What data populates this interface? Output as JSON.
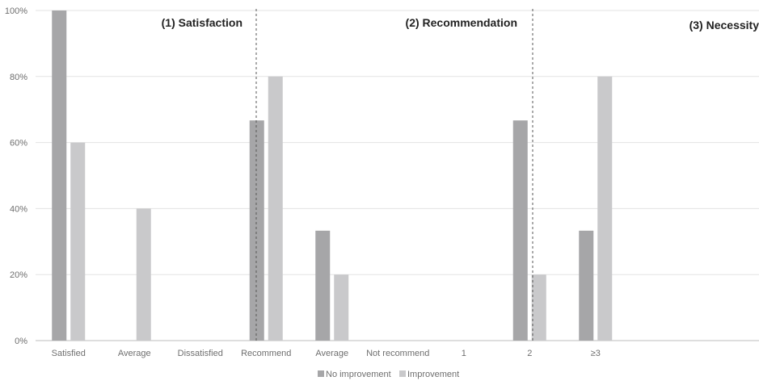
{
  "chart_data": {
    "type": "bar",
    "y_axis": {
      "ylim": [
        0,
        100
      ],
      "ticks": [
        0,
        20,
        40,
        60,
        80,
        100
      ],
      "tick_labels": [
        "0%",
        "20%",
        "40%",
        "60%",
        "80%",
        "100%"
      ]
    },
    "grid": true,
    "legend_position": "bottom",
    "series": [
      {
        "name": "No improvement",
        "color": "#a6a6a8"
      },
      {
        "name": "Improvement",
        "color": "#c9c9cb"
      }
    ],
    "panels": [
      {
        "title": "(1) Satisfaction",
        "categories": [
          "Satisfied",
          "Average",
          "Dissatisfied"
        ],
        "values": {
          "No improvement": [
            100,
            0,
            0
          ],
          "Improvement": [
            60,
            40,
            0
          ]
        }
      },
      {
        "title": "(2) Recommendation",
        "categories": [
          "Recommend",
          "Average",
          "Not recommend"
        ],
        "values": {
          "No improvement": [
            66.7,
            33.3,
            0
          ],
          "Improvement": [
            80,
            20,
            0
          ]
        }
      },
      {
        "title": "(3) Necessity",
        "categories": [
          "1",
          "2",
          "≥3"
        ],
        "values": {
          "No improvement": [
            0,
            66.7,
            33.3
          ],
          "Improvement": [
            0,
            20,
            80
          ]
        }
      }
    ]
  }
}
